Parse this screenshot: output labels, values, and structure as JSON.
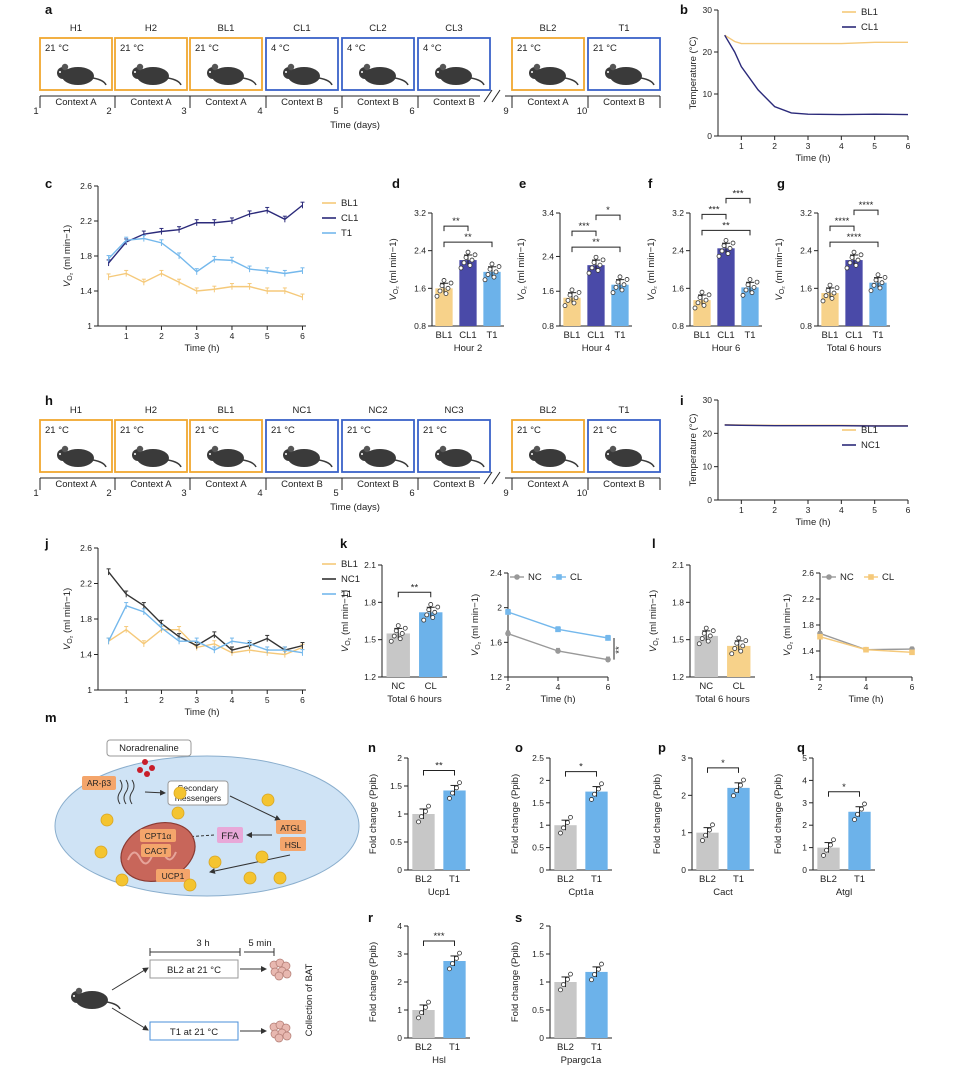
{
  "panel_labels": [
    "a",
    "b",
    "c",
    "d",
    "e",
    "f",
    "g",
    "h",
    "i",
    "j",
    "k",
    "l",
    "m",
    "n",
    "o",
    "p",
    "q",
    "r",
    "s"
  ],
  "timeline_a": {
    "boxes": [
      {
        "name": "H1",
        "temp": "21 °C",
        "context": "Context A",
        "color": "#f0a830"
      },
      {
        "name": "H2",
        "temp": "21 °C",
        "context": "Context A",
        "color": "#f0a830"
      },
      {
        "name": "BL1",
        "temp": "21 °C",
        "context": "Context A",
        "color": "#f0a830"
      },
      {
        "name": "CL1",
        "temp": "4 °C",
        "context": "Context B",
        "color": "#3a62c8"
      },
      {
        "name": "CL2",
        "temp": "4 °C",
        "context": "Context B",
        "color": "#3a62c8"
      },
      {
        "name": "CL3",
        "temp": "4 °C",
        "context": "Context B",
        "color": "#3a62c8"
      },
      {
        "name": "BL2",
        "temp": "21 °C",
        "context": "Context A",
        "color": "#f0a830"
      },
      {
        "name": "T1",
        "temp": "21 °C",
        "context": "Context B",
        "color": "#3a62c8"
      }
    ],
    "days": [
      "1",
      "2",
      "3",
      "4",
      "5",
      "6",
      "9",
      "10"
    ],
    "xlabel": "Time (days)"
  },
  "timeline_h": {
    "boxes": [
      {
        "name": "H1",
        "temp": "21 °C",
        "context": "Context A",
        "color": "#f0a830"
      },
      {
        "name": "H2",
        "temp": "21 °C",
        "context": "Context A",
        "color": "#f0a830"
      },
      {
        "name": "BL1",
        "temp": "21 °C",
        "context": "Context A",
        "color": "#f0a830"
      },
      {
        "name": "NC1",
        "temp": "21 °C",
        "context": "Context B",
        "color": "#3a62c8"
      },
      {
        "name": "NC2",
        "temp": "21 °C",
        "context": "Context B",
        "color": "#3a62c8"
      },
      {
        "name": "NC3",
        "temp": "21 °C",
        "context": "Context B",
        "color": "#3a62c8"
      },
      {
        "name": "BL2",
        "temp": "21 °C",
        "context": "Context A",
        "color": "#f0a830"
      },
      {
        "name": "T1",
        "temp": "21 °C",
        "context": "Context B",
        "color": "#3a62c8"
      }
    ],
    "days": [
      "1",
      "2",
      "3",
      "4",
      "5",
      "6",
      "9",
      "10"
    ],
    "xlabel": "Time (days)"
  },
  "chart_data": [
    {
      "id": "b",
      "type": "line",
      "xlabel": "Time (h)",
      "ylabel": "Temperature (°C)",
      "xlim": [
        0.3,
        6
      ],
      "ylim": [
        0,
        30
      ],
      "xticks": [
        1,
        2,
        3,
        4,
        5,
        6
      ],
      "yticks": [
        0,
        10,
        20,
        30
      ],
      "series": [
        {
          "name": "BL1",
          "color": "#f5c97a",
          "x": [
            0.5,
            0.8,
            1,
            1.5,
            2,
            3,
            4,
            5,
            6
          ],
          "y": [
            24,
            22.5,
            22,
            22,
            22,
            22,
            22,
            22.3,
            22.3
          ]
        },
        {
          "name": "CL1",
          "color": "#2b2a7a",
          "x": [
            0.5,
            0.8,
            1,
            1.5,
            2,
            2.5,
            3,
            4,
            5,
            6
          ],
          "y": [
            24,
            20,
            16.5,
            11,
            7,
            5.5,
            5.2,
            5.1,
            5.2,
            5.1
          ]
        }
      ]
    },
    {
      "id": "c",
      "type": "line",
      "xlabel": "Time (h)",
      "ylabel": "VO2 (ml min−1)",
      "xlim": [
        0.2,
        6.1
      ],
      "ylim": [
        1.0,
        2.6
      ],
      "xticks": [
        1,
        2,
        3,
        4,
        5,
        6
      ],
      "yticks": [
        1.0,
        1.4,
        1.8,
        2.2,
        2.6
      ],
      "series": [
        {
          "name": "BL1",
          "color": "#f5c97a",
          "x": [
            0.5,
            1,
            1.5,
            2,
            2.5,
            3,
            3.5,
            4,
            4.5,
            5,
            5.5,
            6
          ],
          "y": [
            1.56,
            1.6,
            1.5,
            1.6,
            1.5,
            1.4,
            1.42,
            1.45,
            1.45,
            1.4,
            1.4,
            1.33
          ]
        },
        {
          "name": "CL1",
          "color": "#2b2a7a",
          "x": [
            0.5,
            1,
            1.5,
            2,
            2.5,
            3,
            3.5,
            4,
            4.5,
            5,
            5.5,
            6
          ],
          "y": [
            1.72,
            1.96,
            2.05,
            2.08,
            2.1,
            2.18,
            2.18,
            2.2,
            2.28,
            2.32,
            2.22,
            2.38
          ]
        },
        {
          "name": "T1",
          "color": "#74b8ec",
          "x": [
            0.5,
            1,
            1.5,
            2,
            2.5,
            3,
            3.5,
            4,
            4.5,
            5,
            5.5,
            6
          ],
          "y": [
            1.77,
            1.98,
            2.0,
            1.95,
            1.8,
            1.62,
            1.76,
            1.75,
            1.65,
            1.63,
            1.6,
            1.63
          ]
        }
      ]
    },
    {
      "id": "d",
      "type": "bar",
      "categories": [
        "BL1",
        "CL1",
        "T1"
      ],
      "values": [
        1.6,
        2.2,
        1.95
      ],
      "colors": [
        "#f7d28a",
        "#4a4aa8",
        "#6cb2ea"
      ],
      "xlabel": "Hour 2",
      "ylabel": "VO2 (ml min−1)",
      "ylim": [
        0.8,
        3.2
      ],
      "yticks": [
        0.8,
        1.6,
        2.4,
        3.2
      ],
      "sig": [
        {
          "a": 0,
          "b": 2,
          "label": "**"
        },
        {
          "a": 0,
          "b": 1,
          "label": "**"
        }
      ]
    },
    {
      "id": "e",
      "type": "bar",
      "categories": [
        "BL1",
        "CL1",
        "T1"
      ],
      "values": [
        1.45,
        2.2,
        1.75
      ],
      "colors": [
        "#f7d28a",
        "#4a4aa8",
        "#6cb2ea"
      ],
      "xlabel": "Hour 4",
      "ylabel": "VO2 (ml min−1)",
      "ylim": [
        0.8,
        3.4
      ],
      "yticks": [
        0.8,
        1.6,
        2.4,
        3.4
      ],
      "sig": [
        {
          "a": 0,
          "b": 2,
          "label": "**"
        },
        {
          "a": 0,
          "b": 1,
          "label": "***"
        },
        {
          "a": 1,
          "b": 2,
          "label": "*"
        }
      ]
    },
    {
      "id": "f",
      "type": "bar",
      "categories": [
        "BL1",
        "CL1",
        "T1"
      ],
      "values": [
        1.35,
        2.45,
        1.62
      ],
      "colors": [
        "#f7d28a",
        "#4a4aa8",
        "#6cb2ea"
      ],
      "xlabel": "Hour 6",
      "ylabel": "VO2 (ml min−1)",
      "ylim": [
        0.8,
        3.2
      ],
      "yticks": [
        0.8,
        1.6,
        2.4,
        3.2
      ],
      "sig": [
        {
          "a": 0,
          "b": 2,
          "label": "**"
        },
        {
          "a": 0,
          "b": 1,
          "label": "***"
        },
        {
          "a": 1,
          "b": 2,
          "label": "***"
        }
      ]
    },
    {
      "id": "g",
      "type": "bar",
      "categories": [
        "BL1",
        "CL1",
        "T1"
      ],
      "values": [
        1.5,
        2.2,
        1.72
      ],
      "colors": [
        "#f7d28a",
        "#4a4aa8",
        "#6cb2ea"
      ],
      "xlabel": "Total 6 hours",
      "ylabel": "VO2 (ml min−1)",
      "ylim": [
        0.8,
        3.2
      ],
      "yticks": [
        0.8,
        1.6,
        2.4,
        3.2
      ],
      "sig": [
        {
          "a": 0,
          "b": 2,
          "label": "****"
        },
        {
          "a": 0,
          "b": 1,
          "label": "****"
        },
        {
          "a": 1,
          "b": 2,
          "label": "****"
        }
      ]
    },
    {
      "id": "i",
      "type": "line",
      "xlabel": "Time (h)",
      "ylabel": "Temperature (°C)",
      "xlim": [
        0.3,
        6
      ],
      "ylim": [
        0,
        30
      ],
      "xticks": [
        1,
        2,
        3,
        4,
        5,
        6
      ],
      "yticks": [
        0,
        10,
        20,
        30
      ],
      "series": [
        {
          "name": "BL1",
          "color": "#f5c97a",
          "x": [
            0.5,
            1,
            2,
            3,
            4,
            5,
            6
          ],
          "y": [
            22.6,
            22.5,
            22.4,
            22.4,
            22.4,
            22.3,
            22.3
          ]
        },
        {
          "name": "NC1",
          "color": "#2b2a7a",
          "x": [
            0.5,
            1,
            2,
            3,
            4,
            5,
            6
          ],
          "y": [
            22.5,
            22.4,
            22.3,
            22.3,
            22.3,
            22.2,
            22.2
          ]
        }
      ]
    },
    {
      "id": "j",
      "type": "line",
      "xlabel": "Time (h)",
      "ylabel": "VO2 (ml min−1)",
      "xlim": [
        0.2,
        6.1
      ],
      "ylim": [
        1.0,
        2.6
      ],
      "xticks": [
        1,
        2,
        3,
        4,
        5,
        6
      ],
      "yticks": [
        1.0,
        1.4,
        1.8,
        2.2,
        2.6
      ],
      "series": [
        {
          "name": "BL1",
          "color": "#f5c97a",
          "x": [
            0.5,
            1,
            1.5,
            2,
            2.5,
            3,
            3.5,
            4,
            4.5,
            5,
            5.5,
            6
          ],
          "y": [
            1.55,
            1.68,
            1.52,
            1.68,
            1.68,
            1.48,
            1.52,
            1.42,
            1.45,
            1.42,
            1.4,
            1.48
          ]
        },
        {
          "name": "NC1",
          "color": "#333333",
          "x": [
            0.5,
            1,
            1.5,
            2,
            2.5,
            3,
            3.5,
            4,
            4.5,
            5,
            5.5,
            6
          ],
          "y": [
            2.33,
            2.08,
            1.95,
            1.75,
            1.6,
            1.5,
            1.62,
            1.45,
            1.5,
            1.58,
            1.45,
            1.5
          ]
        },
        {
          "name": "T1",
          "color": "#74b8ec",
          "x": [
            0.5,
            1,
            1.5,
            2,
            2.5,
            3,
            3.5,
            4,
            4.5,
            5,
            5.5,
            6
          ],
          "y": [
            1.55,
            1.95,
            1.88,
            1.7,
            1.55,
            1.55,
            1.45,
            1.55,
            1.52,
            1.45,
            1.45,
            1.42
          ]
        }
      ]
    },
    {
      "id": "k1",
      "type": "bar",
      "categories": [
        "NC",
        "CL"
      ],
      "values": [
        1.55,
        1.72
      ],
      "colors": [
        "#c7c7c7",
        "#6cb2ea"
      ],
      "xlabel": "Total 6 hours",
      "ylabel": "VO2 (ml min−1)",
      "ylim": [
        1.2,
        2.1
      ],
      "yticks": [
        1.2,
        1.5,
        1.8,
        2.1
      ],
      "sig": [
        {
          "a": 0,
          "b": 1,
          "label": "**"
        }
      ]
    },
    {
      "id": "k2",
      "type": "line",
      "xlabel": "Time (h)",
      "ylabel": "VO2 (ml min−1)",
      "xlim": [
        2,
        6
      ],
      "ylim": [
        1.2,
        2.4
      ],
      "xticks": [
        2,
        4,
        6
      ],
      "yticks": [
        1.2,
        1.6,
        2.0,
        2.4
      ],
      "series": [
        {
          "name": "NC",
          "color": "#999999",
          "x": [
            2,
            4,
            6
          ],
          "y": [
            1.7,
            1.5,
            1.4
          ]
        },
        {
          "name": "CL",
          "color": "#74b8ec",
          "x": [
            2,
            4,
            6
          ],
          "y": [
            1.95,
            1.75,
            1.65
          ]
        }
      ],
      "sig": "**"
    },
    {
      "id": "l1",
      "type": "bar",
      "categories": [
        "NC",
        "CL"
      ],
      "values": [
        1.53,
        1.45
      ],
      "colors": [
        "#c7c7c7",
        "#f7d28a"
      ],
      "xlabel": "Total 6 hours",
      "ylabel": "VO2 (ml min−1)",
      "ylim": [
        1.2,
        2.1
      ],
      "yticks": [
        1.2,
        1.5,
        1.8,
        2.1
      ]
    },
    {
      "id": "l2",
      "type": "line",
      "xlabel": "Time (h)",
      "ylabel": "VO2 (ml min−1)",
      "xlim": [
        2,
        6
      ],
      "ylim": [
        1.0,
        2.6
      ],
      "xticks": [
        2,
        4,
        6
      ],
      "yticks": [
        1.0,
        1.4,
        1.8,
        2.2,
        2.6
      ],
      "series": [
        {
          "name": "NC",
          "color": "#999999",
          "x": [
            2,
            4,
            6
          ],
          "y": [
            1.67,
            1.42,
            1.43
          ]
        },
        {
          "name": "CL",
          "color": "#f5c97a",
          "x": [
            2,
            4,
            6
          ],
          "y": [
            1.62,
            1.42,
            1.38
          ]
        }
      ]
    },
    {
      "id": "n",
      "type": "bar",
      "categories": [
        "BL2",
        "T1"
      ],
      "values": [
        1.0,
        1.42
      ],
      "colors": [
        "#c7c7c7",
        "#6cb2ea"
      ],
      "xlabel": "Ucp1",
      "ylabel": "Fold change (Ppib)",
      "ylim": [
        0,
        2.0
      ],
      "yticks": [
        0,
        0.5,
        1.0,
        1.5,
        2.0
      ],
      "sig": [
        {
          "a": 0,
          "b": 1,
          "label": "**"
        }
      ]
    },
    {
      "id": "o",
      "type": "bar",
      "categories": [
        "BL2",
        "T1"
      ],
      "values": [
        1.0,
        1.75
      ],
      "colors": [
        "#c7c7c7",
        "#6cb2ea"
      ],
      "xlabel": "Cpt1a",
      "ylabel": "Fold change (Ppib)",
      "ylim": [
        0,
        2.5
      ],
      "yticks": [
        0,
        0.5,
        1.0,
        1.5,
        2.0,
        2.5
      ],
      "sig": [
        {
          "a": 0,
          "b": 1,
          "label": "*"
        }
      ]
    },
    {
      "id": "p",
      "type": "bar",
      "categories": [
        "BL2",
        "T1"
      ],
      "values": [
        1.0,
        2.2
      ],
      "colors": [
        "#c7c7c7",
        "#6cb2ea"
      ],
      "xlabel": "Cact",
      "ylabel": "Fold change (Ppib)",
      "ylim": [
        0,
        3
      ],
      "yticks": [
        0,
        1,
        2,
        3
      ],
      "sig": [
        {
          "a": 0,
          "b": 1,
          "label": "*"
        }
      ]
    },
    {
      "id": "q",
      "type": "bar",
      "categories": [
        "BL2",
        "T1"
      ],
      "values": [
        1.0,
        2.6
      ],
      "colors": [
        "#c7c7c7",
        "#6cb2ea"
      ],
      "xlabel": "Atgl",
      "ylabel": "Fold change (Ppib)",
      "ylim": [
        0,
        5
      ],
      "yticks": [
        0,
        1,
        2,
        3,
        4,
        5
      ],
      "sig": [
        {
          "a": 0,
          "b": 1,
          "label": "*"
        }
      ]
    },
    {
      "id": "r",
      "type": "bar",
      "categories": [
        "BL2",
        "T1"
      ],
      "values": [
        1.0,
        2.75
      ],
      "colors": [
        "#c7c7c7",
        "#6cb2ea"
      ],
      "xlabel": "Hsl",
      "ylabel": "Fold change (Ppib)",
      "ylim": [
        0,
        4
      ],
      "yticks": [
        0,
        1,
        2,
        3,
        4
      ],
      "sig": [
        {
          "a": 0,
          "b": 1,
          "label": "***"
        }
      ]
    },
    {
      "id": "s",
      "type": "bar",
      "categories": [
        "BL2",
        "T1"
      ],
      "values": [
        1.0,
        1.18
      ],
      "colors": [
        "#c7c7c7",
        "#6cb2ea"
      ],
      "xlabel": "Ppargc1a",
      "ylabel": "Fold change (Ppib)",
      "ylim": [
        0,
        2.0
      ],
      "yticks": [
        0,
        0.5,
        1.0,
        1.5,
        2.0
      ]
    }
  ],
  "schematic_m": {
    "noradrenaline": "Noradrenaline",
    "receptor": "AR-β3",
    "messengers_line1": "Secondary",
    "messengers_line2": "messengers",
    "atgl": "ATGL",
    "hsl": "HSL",
    "ffa": "FFA",
    "cpt": "CPT1α",
    "cact": "CACT",
    "ucp1": "UCP1",
    "duration_long": "3 h",
    "duration_short": "5 min",
    "bl2": "BL2 at 21 °C",
    "t1": "T1 at 21 °C",
    "collection": "Collection of BAT"
  }
}
